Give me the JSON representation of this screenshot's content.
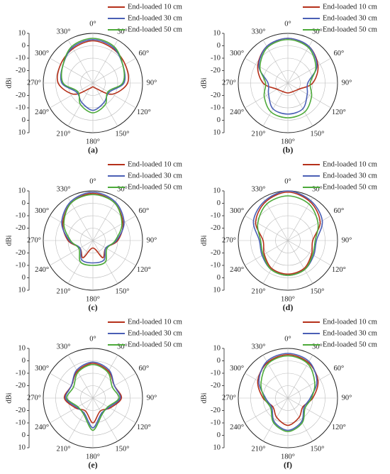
{
  "chart_data": [
    {
      "type": "polar",
      "title": "(a)",
      "ylabel": "dBi",
      "x": [
        0,
        30,
        60,
        90,
        120,
        150,
        180,
        210,
        240,
        270,
        300,
        330
      ],
      "xticks": [
        {
          "value": 0,
          "label": "0°"
        },
        {
          "value": 30,
          "label": "30°"
        },
        {
          "value": 60,
          "label": "60°"
        },
        {
          "value": 90,
          "label": "90°"
        },
        {
          "value": 120,
          "label": "120°"
        },
        {
          "value": 150,
          "label": "150°"
        },
        {
          "value": 180,
          "label": "180°"
        },
        {
          "value": 210,
          "label": "210°"
        },
        {
          "value": 240,
          "label": "240°"
        },
        {
          "value": 270,
          "label": "270°"
        },
        {
          "value": 300,
          "label": "300°"
        },
        {
          "value": 330,
          "label": "330°"
        }
      ],
      "ylim": [
        -30,
        10
      ],
      "yticks": [
        -20,
        -10,
        0,
        10
      ],
      "grid": true,
      "series": [
        {
          "name": "End-loaded 10 cm",
          "color": "#b5301a",
          "values": [
            4,
            2,
            0,
            -2,
            -12,
            -25,
            -27,
            -25,
            -12,
            -2,
            0,
            2
          ]
        },
        {
          "name": "End-loaded 30 cm",
          "color": "#4a5fb5",
          "values": [
            5,
            3,
            -2,
            -5,
            -15,
            -12,
            -8,
            -12,
            -15,
            -5,
            -2,
            3
          ]
        },
        {
          "name": "End-loaded 50 cm",
          "color": "#4daa3a",
          "values": [
            6,
            4,
            -2,
            -6,
            -16,
            -10,
            -6,
            -10,
            -16,
            -6,
            -2,
            4
          ]
        }
      ]
    },
    {
      "type": "polar",
      "title": "(b)",
      "ylabel": "dBi",
      "x": [
        0,
        30,
        60,
        90,
        120,
        150,
        180,
        210,
        240,
        270,
        300,
        330
      ],
      "xticks": [
        {
          "value": 0,
          "label": "0°"
        },
        {
          "value": 30,
          "label": "30°"
        },
        {
          "value": 60,
          "label": "60°"
        },
        {
          "value": 90,
          "label": "90°"
        },
        {
          "value": 120,
          "label": "120°"
        },
        {
          "value": 150,
          "label": "150°"
        },
        {
          "value": 180,
          "label": "180°"
        },
        {
          "value": 210,
          "label": "210°"
        },
        {
          "value": 240,
          "label": "240°"
        },
        {
          "value": 270,
          "label": "270°"
        },
        {
          "value": 300,
          "label": "300°"
        },
        {
          "value": 330,
          "label": "330°"
        }
      ],
      "ylim": [
        -30,
        10
      ],
      "yticks": [
        -20,
        -10,
        0,
        10
      ],
      "grid": true,
      "series": [
        {
          "name": "End-loaded 10 cm",
          "color": "#b5301a",
          "values": [
            6,
            4,
            -2,
            -10,
            -20,
            -22,
            -22,
            -22,
            -20,
            -10,
            -2,
            4
          ]
        },
        {
          "name": "End-loaded 30 cm",
          "color": "#4a5fb5",
          "values": [
            6,
            4,
            -3,
            -14,
            -12,
            -6,
            -5,
            -6,
            -12,
            -14,
            -3,
            4
          ]
        },
        {
          "name": "End-loaded 50 cm",
          "color": "#4daa3a",
          "values": [
            5,
            3,
            -4,
            -12,
            -8,
            -3,
            -2,
            -3,
            -8,
            -12,
            -4,
            3
          ]
        }
      ]
    },
    {
      "type": "polar",
      "title": "(c)",
      "ylabel": "dBi",
      "x": [
        0,
        30,
        60,
        90,
        120,
        150,
        180,
        210,
        240,
        270,
        300,
        330
      ],
      "xticks": [
        {
          "value": 0,
          "label": "0°"
        },
        {
          "value": 30,
          "label": "30°"
        },
        {
          "value": 60,
          "label": "60°"
        },
        {
          "value": 90,
          "label": "90°"
        },
        {
          "value": 120,
          "label": "120°"
        },
        {
          "value": 150,
          "label": "150°"
        },
        {
          "value": 180,
          "label": "180°"
        },
        {
          "value": 210,
          "label": "210°"
        },
        {
          "value": 240,
          "label": "240°"
        },
        {
          "value": 270,
          "label": "270°"
        },
        {
          "value": 300,
          "label": "300°"
        },
        {
          "value": 330,
          "label": "330°"
        }
      ],
      "ylim": [
        -30,
        10
      ],
      "yticks": [
        -20,
        -10,
        0,
        10
      ],
      "grid": true,
      "series": [
        {
          "name": "End-loaded 10 cm",
          "color": "#b5301a",
          "values": [
            8,
            5,
            -2,
            -10,
            -18,
            -14,
            -24,
            -14,
            -18,
            -10,
            -2,
            5
          ]
        },
        {
          "name": "End-loaded 30 cm",
          "color": "#4a5fb5",
          "values": [
            9,
            6,
            -1,
            -11,
            -18,
            -12,
            -12,
            -12,
            -18,
            -11,
            -1,
            6
          ]
        },
        {
          "name": "End-loaded 50 cm",
          "color": "#4daa3a",
          "values": [
            7,
            5,
            -3,
            -12,
            -17,
            -10,
            -10,
            -10,
            -17,
            -12,
            -3,
            5
          ]
        }
      ]
    },
    {
      "type": "polar",
      "title": "(d)",
      "ylabel": "dBi",
      "x": [
        0,
        30,
        60,
        90,
        120,
        150,
        180,
        210,
        240,
        270,
        300,
        330
      ],
      "xticks": [
        {
          "value": 0,
          "label": "0°"
        },
        {
          "value": 30,
          "label": "30°"
        },
        {
          "value": 60,
          "label": "60°"
        },
        {
          "value": 90,
          "label": "90°"
        },
        {
          "value": 120,
          "label": "120°"
        },
        {
          "value": 150,
          "label": "150°"
        },
        {
          "value": 180,
          "label": "180°"
        },
        {
          "value": 210,
          "label": "210°"
        },
        {
          "value": 240,
          "label": "240°"
        },
        {
          "value": 270,
          "label": "270°"
        },
        {
          "value": 300,
          "label": "300°"
        },
        {
          "value": 330,
          "label": "330°"
        }
      ],
      "ylim": [
        -30,
        10
      ],
      "yticks": [
        -20,
        -10,
        0,
        10
      ],
      "grid": true,
      "series": [
        {
          "name": "End-loaded 10 cm",
          "color": "#b5301a",
          "values": [
            9,
            6,
            0,
            -10,
            -8,
            -4,
            -3,
            -4,
            -8,
            -10,
            0,
            6
          ]
        },
        {
          "name": "End-loaded 30 cm",
          "color": "#4a5fb5",
          "values": [
            10,
            7,
            2,
            -7,
            -6,
            -3,
            -2,
            -3,
            -6,
            -7,
            2,
            7
          ]
        },
        {
          "name": "End-loaded 50 cm",
          "color": "#4daa3a",
          "values": [
            6,
            4,
            -2,
            -8,
            -7,
            -3,
            -2,
            -3,
            -7,
            -8,
            -2,
            4
          ]
        }
      ]
    },
    {
      "type": "polar",
      "title": "(e)",
      "ylabel": "dBi",
      "x": [
        0,
        30,
        60,
        90,
        120,
        150,
        180,
        210,
        240,
        270,
        300,
        330
      ],
      "xticks": [
        {
          "value": 0,
          "label": "0°"
        },
        {
          "value": 30,
          "label": "30°"
        },
        {
          "value": 60,
          "label": "60°"
        },
        {
          "value": 90,
          "label": "90°"
        },
        {
          "value": 120,
          "label": "120°"
        },
        {
          "value": 150,
          "label": "150°"
        },
        {
          "value": 180,
          "label": "180°"
        },
        {
          "value": 210,
          "label": "210°"
        },
        {
          "value": 240,
          "label": "240°"
        },
        {
          "value": 270,
          "label": "270°"
        },
        {
          "value": 300,
          "label": "300°"
        },
        {
          "value": 330,
          "label": "330°"
        }
      ],
      "ylim": [
        -30,
        10
      ],
      "yticks": [
        -20,
        -10,
        0,
        10
      ],
      "grid": true,
      "series": [
        {
          "name": "End-loaded 10 cm",
          "color": "#b5301a",
          "values": [
            -2,
            -5,
            -10,
            -7,
            -14,
            -18,
            -10,
            -18,
            -14,
            -7,
            -10,
            -5
          ]
        },
        {
          "name": "End-loaded 30 cm",
          "color": "#4a5fb5",
          "values": [
            -1,
            -4,
            -10,
            -8,
            -15,
            -16,
            -6,
            -16,
            -15,
            -8,
            -10,
            -4
          ]
        },
        {
          "name": "End-loaded 50 cm",
          "color": "#4daa3a",
          "values": [
            -3,
            -6,
            -12,
            -9,
            -16,
            -15,
            -4,
            -15,
            -16,
            -9,
            -12,
            -6
          ]
        }
      ]
    },
    {
      "type": "polar",
      "title": "(f)",
      "ylabel": "dBi",
      "x": [
        0,
        30,
        60,
        90,
        120,
        150,
        180,
        210,
        240,
        270,
        300,
        330
      ],
      "xticks": [
        {
          "value": 0,
          "label": "0°"
        },
        {
          "value": 30,
          "label": "30°"
        },
        {
          "value": 60,
          "label": "60°"
        },
        {
          "value": 90,
          "label": "90°"
        },
        {
          "value": 120,
          "label": "120°"
        },
        {
          "value": 150,
          "label": "150°"
        },
        {
          "value": 180,
          "label": "180°"
        },
        {
          "value": 210,
          "label": "210°"
        },
        {
          "value": 240,
          "label": "240°"
        },
        {
          "value": 270,
          "label": "270°"
        },
        {
          "value": 300,
          "label": "300°"
        },
        {
          "value": 330,
          "label": "330°"
        }
      ],
      "ylim": [
        -30,
        10
      ],
      "yticks": [
        -20,
        -10,
        0,
        10
      ],
      "grid": true,
      "series": [
        {
          "name": "End-loaded 10 cm",
          "color": "#b5301a",
          "values": [
            5,
            3,
            -2,
            -10,
            -16,
            -12,
            -8,
            -12,
            -16,
            -10,
            -2,
            3
          ]
        },
        {
          "name": "End-loaded 30 cm",
          "color": "#4a5fb5",
          "values": [
            6,
            4,
            -3,
            -12,
            -15,
            -8,
            -4,
            -8,
            -15,
            -12,
            -3,
            4
          ]
        },
        {
          "name": "End-loaded 50 cm",
          "color": "#4daa3a",
          "values": [
            4,
            2,
            -5,
            -11,
            -14,
            -7,
            -3,
            -7,
            -14,
            -11,
            -5,
            2
          ]
        }
      ]
    }
  ]
}
